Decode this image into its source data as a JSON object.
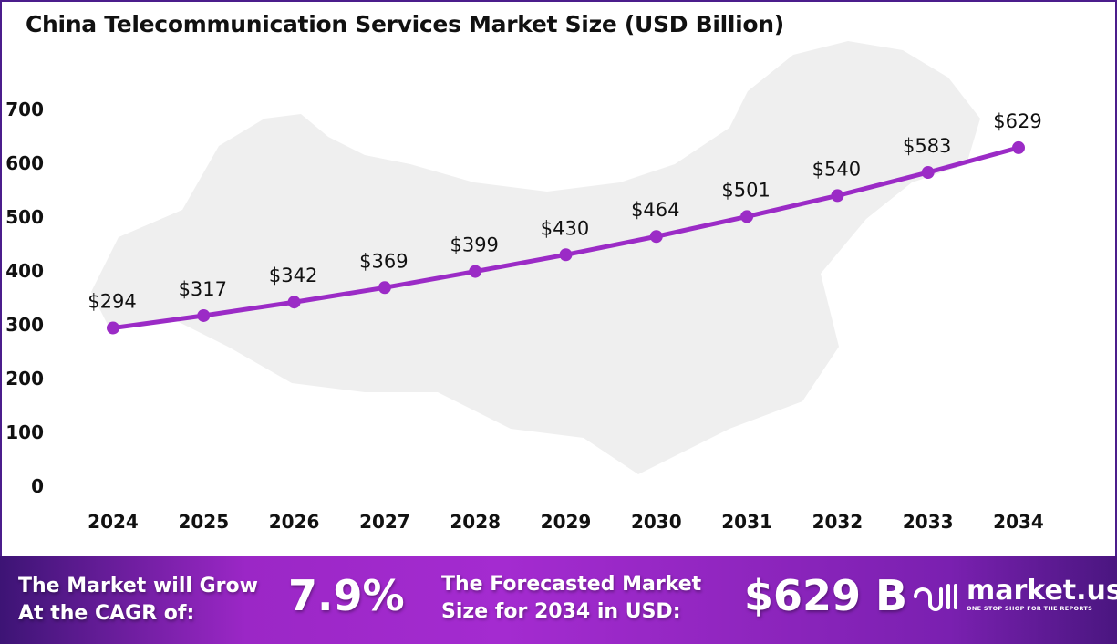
{
  "chart_data": {
    "type": "line",
    "title": "China Telecommunication Services Market Size (USD Billion)",
    "xlabel": "",
    "ylabel": "",
    "categories": [
      "2024",
      "2025",
      "2026",
      "2027",
      "2028",
      "2029",
      "2030",
      "2031",
      "2032",
      "2033",
      "2034"
    ],
    "values": [
      294,
      317,
      342,
      369,
      399,
      430,
      464,
      501,
      540,
      583,
      629
    ],
    "data_labels": [
      "$294",
      "$317",
      "$342",
      "$369",
      "$399",
      "$430",
      "$464",
      "$501",
      "$540",
      "$583",
      "$629"
    ],
    "yticks": [
      "0",
      "100",
      "200",
      "300",
      "400",
      "500",
      "600",
      "700"
    ],
    "ylim": [
      0,
      700
    ],
    "grid": false,
    "series_color": "#9b2bc6"
  },
  "footer": {
    "cagr_label_1": "The Market will Grow",
    "cagr_label_2": "At the CAGR of:",
    "cagr_value": "7.9%",
    "forecast_label_1": "The Forecasted Market",
    "forecast_label_2": "Size for 2034 in USD:",
    "forecast_value": "$629 B",
    "logo_name": "market.us",
    "logo_tagline": "ONE STOP SHOP FOR THE REPORTS"
  }
}
